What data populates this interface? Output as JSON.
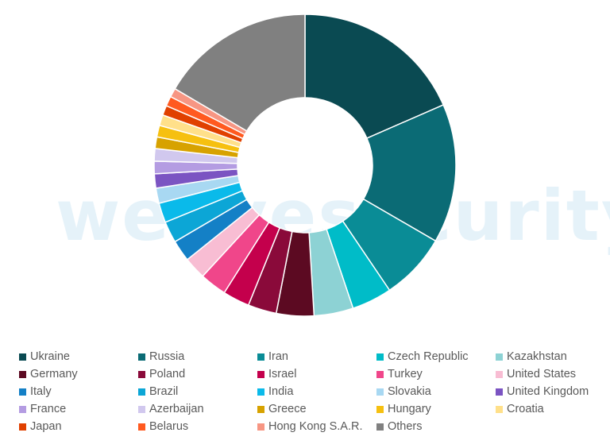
{
  "watermark": "welivesecurity",
  "chart_data": {
    "type": "pie",
    "donut": true,
    "legend_position": "bottom",
    "categories": [
      "Ukraine",
      "Russia",
      "Iran",
      "Czech Republic",
      "Kazakhstan",
      "Germany",
      "Poland",
      "Israel",
      "Turkey",
      "United States",
      "Italy",
      "Brazil",
      "India",
      "Slovakia",
      "United Kingdom",
      "France",
      "Azerbaijan",
      "Greece",
      "Hungary",
      "Croatia",
      "Japan",
      "Belarus",
      "Hong Kong S.A.R.",
      "Others"
    ],
    "values": [
      19.3,
      15.6,
      7.5,
      4.5,
      4.4,
      4.2,
      3.2,
      3.0,
      3.0,
      2.5,
      2.4,
      2.4,
      2.2,
      1.7,
      1.6,
      1.4,
      1.4,
      1.3,
      1.3,
      1.2,
      1.1,
      1.1,
      1.0,
      17.3
    ],
    "colors": [
      "#0a4a52",
      "#0b6b75",
      "#0a8c96",
      "#00bcc8",
      "#8dd2d4",
      "#5c0a22",
      "#8a0a3a",
      "#c4004c",
      "#f0468a",
      "#f8bdd3",
      "#1480c6",
      "#0ca6d6",
      "#0abaea",
      "#a8d8f2",
      "#7b54c2",
      "#b49ce2",
      "#d1c8ee",
      "#d7a200",
      "#f6c010",
      "#ffe08a",
      "#e04000",
      "#ff5a20",
      "#f79683",
      "#808080"
    ]
  }
}
